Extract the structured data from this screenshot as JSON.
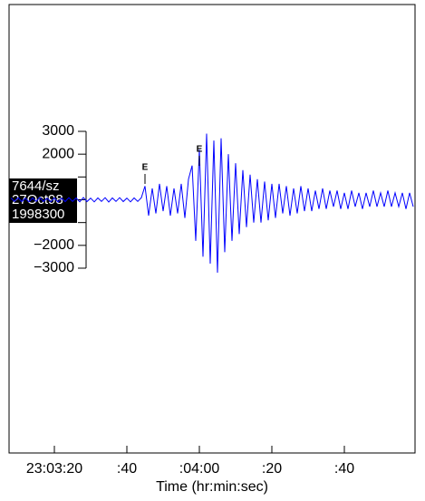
{
  "chart_data": {
    "type": "line",
    "x_label": "Time (hr:min:sec)",
    "station": [
      "7644/sz",
      "27Oct98",
      "1998300"
    ],
    "annotations": [
      {
        "text": "E",
        "x": 45
      },
      {
        "text": "E",
        "x": 60
      }
    ],
    "xlim": [
      7.5,
      119.5
    ],
    "xticks": [
      {
        "value": 20,
        "label": "23:03:20"
      },
      {
        "value": 40,
        "label": ":40"
      },
      {
        "value": 60,
        "label": ":04:00"
      },
      {
        "value": 80,
        "label": ":20"
      },
      {
        "value": 100,
        "label": ":40"
      }
    ],
    "ylim": [
      -3000,
      3000
    ],
    "yticks": [
      3000,
      2000,
      {
        "value": 1000,
        "label": null
      },
      {
        "value": 0,
        "label": null
      },
      {
        "value": -1000,
        "label": null
      },
      {
        "value": -2000,
        "label": "−2000"
      },
      {
        "value": -3000,
        "label": "−3000"
      }
    ],
    "x": [
      8,
      9,
      10,
      11,
      12,
      13,
      14,
      15,
      16,
      17,
      18,
      19,
      20,
      21,
      22,
      23,
      24,
      25,
      26,
      27,
      28,
      29,
      30,
      31,
      32,
      33,
      34,
      35,
      36,
      37,
      38,
      39,
      40,
      41,
      42,
      43,
      44,
      45,
      46,
      47,
      48,
      49,
      50,
      51,
      52,
      53,
      54,
      55,
      56,
      57,
      58,
      59,
      60,
      61,
      62,
      63,
      64,
      65,
      66,
      67,
      68,
      69,
      70,
      71,
      72,
      73,
      74,
      75,
      76,
      77,
      78,
      79,
      80,
      81,
      82,
      83,
      84,
      85,
      86,
      87,
      88,
      89,
      90,
      91,
      92,
      93,
      94,
      95,
      96,
      97,
      98,
      99,
      100,
      101,
      102,
      103,
      104,
      105,
      106,
      107,
      108,
      109,
      110,
      111,
      112,
      113,
      114,
      115,
      116,
      117,
      118,
      119
    ],
    "series": [
      {
        "name": "7644/sz",
        "color": "#0000ff",
        "values": [
          80,
          -70,
          90,
          -80,
          70,
          -90,
          80,
          -70,
          100,
          -80,
          70,
          -90,
          80,
          -100,
          70,
          -80,
          90,
          -70,
          80,
          -90,
          100,
          -80,
          70,
          -90,
          80,
          -70,
          90,
          -100,
          80,
          -70,
          90,
          -80,
          70,
          -90,
          80,
          -70,
          90,
          600,
          -700,
          500,
          -600,
          700,
          -500,
          600,
          -700,
          500,
          -600,
          700,
          -800,
          900,
          1500,
          -1800,
          2200,
          -2500,
          2900,
          -2800,
          2600,
          -3200,
          2700,
          -2300,
          2000,
          -1800,
          1600,
          -1500,
          1300,
          -1200,
          1100,
          -1000,
          900,
          -1000,
          800,
          -900,
          700,
          -800,
          700,
          -600,
          600,
          -700,
          500,
          -600,
          600,
          -500,
          500,
          -500,
          400,
          -400,
          500,
          -400,
          400,
          -300,
          400,
          -400,
          300,
          -400,
          400,
          -300,
          300,
          -400,
          300,
          -300,
          400,
          -300,
          300,
          -300,
          400,
          -300,
          300,
          -300,
          300,
          -400,
          300,
          -300
        ]
      }
    ]
  }
}
